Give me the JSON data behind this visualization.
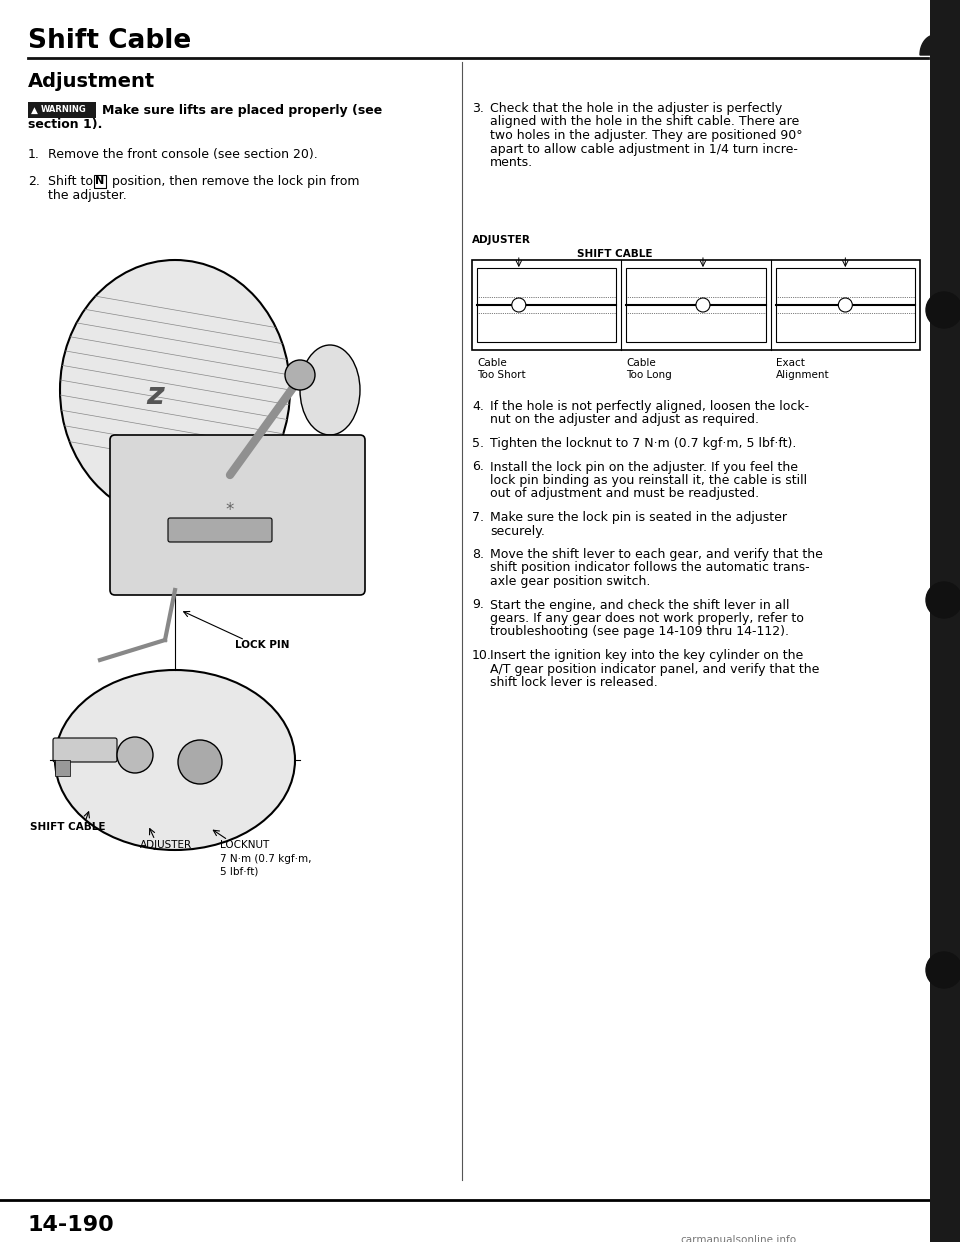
{
  "page_title": "Shift Cable",
  "section_title": "Adjustment",
  "warning_text_line1": "Make sure lifts are placed properly (see",
  "warning_text_line2": "section 1).",
  "step1": "Remove the front console (see section 20).",
  "step2_before": "Shift to ",
  "step2_N": "N",
  "step2_after": " position, then remove the lock pin from",
  "step2_line2": "the adjuster.",
  "step3_lines": [
    "Check that the hole in the adjuster is perfectly",
    "aligned with the hole in the shift cable. There are",
    "two holes in the adjuster. They are positioned 90°",
    "apart to allow cable adjustment in 1/4 turn incre-",
    "ments."
  ],
  "step4_lines": [
    "If the hole is not perfectly aligned, loosen the lock-",
    "nut on the adjuster and adjust as required."
  ],
  "step5": "Tighten the locknut to 7 N·m (0.7 kgf·m, 5 lbf·ft).",
  "step6_lines": [
    "Install the lock pin on the adjuster. If you feel the",
    "lock pin binding as you reinstall it, the cable is still",
    "out of adjustment and must be readjusted."
  ],
  "step7_lines": [
    "Make sure the lock pin is seated in the adjuster",
    "securely."
  ],
  "step8_lines": [
    "Move the shift lever to each gear, and verify that the",
    "shift position indicator follows the automatic trans-",
    "axle gear position switch."
  ],
  "step9_lines": [
    "Start the engine, and check the shift lever in all",
    "gears. If any gear does not work properly, refer to",
    "troubleshooting (see page 14-109 thru 14-112)."
  ],
  "step10_lines": [
    "Insert the ignition key into the key cylinder on the",
    "A/T gear position indicator panel, and verify that the",
    "shift lock lever is released."
  ],
  "diag_adjuster": "ADJUSTER",
  "diag_shift_cable": "SHIFT CABLE",
  "diag_cable_too_short": "Cable\nToo Short",
  "diag_cable_too_long": "Cable\nToo Long",
  "diag_exact_alignment": "Exact\nAlignment",
  "left_lock_pin": "LOCK PIN",
  "left_shift_cable": "SHIFT CABLE",
  "left_adjuster": "ADJUSTER",
  "left_locknut": "LOCKNUT",
  "left_locknut_spec": "7 N·m (0.7 kgf·m,",
  "left_locknut_spec2": "5 lbf·ft)",
  "page_number": "14-190",
  "watermark": "carmanualsonline.info",
  "bg_color": "#ffffff",
  "text_color": "#000000",
  "warning_bg": "#1a1a1a",
  "right_bar_color": "#111111"
}
